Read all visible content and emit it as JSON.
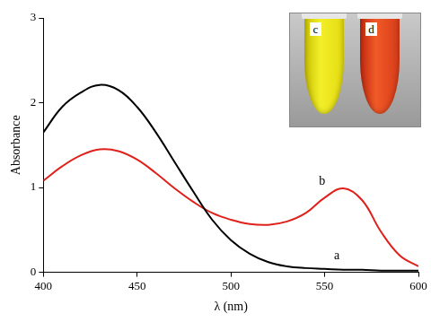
{
  "chart_data": {
    "type": "line",
    "x_label": "λ (nm)",
    "y_label": "Absorbance",
    "xlim": [
      400,
      600
    ],
    "xticks": [
      400,
      450,
      500,
      550,
      600
    ],
    "ylim": [
      0,
      3
    ],
    "yticks": [
      0,
      1,
      2,
      3
    ],
    "grid": false,
    "x": [
      400,
      410,
      420,
      430,
      440,
      450,
      460,
      470,
      480,
      490,
      500,
      510,
      520,
      530,
      540,
      550,
      560,
      570,
      580,
      590,
      600
    ],
    "series": [
      {
        "name": "a",
        "color": "#000000",
        "values": [
          1.65,
          1.95,
          2.12,
          2.21,
          2.15,
          1.95,
          1.65,
          1.3,
          0.95,
          0.62,
          0.38,
          0.22,
          0.12,
          0.07,
          0.05,
          0.04,
          0.03,
          0.03,
          0.02,
          0.02,
          0.02
        ]
      },
      {
        "name": "b",
        "color": "#e0201b",
        "values": [
          1.08,
          1.25,
          1.38,
          1.45,
          1.43,
          1.33,
          1.17,
          0.99,
          0.83,
          0.7,
          0.62,
          0.57,
          0.56,
          0.6,
          0.7,
          0.88,
          0.99,
          0.85,
          0.48,
          0.2,
          0.07
        ]
      }
    ],
    "annotations": [
      {
        "text": "a",
        "x": 555,
        "y": 0.12
      },
      {
        "text": "b",
        "x": 547,
        "y": 1.0
      }
    ],
    "inset": {
      "labels": [
        "c",
        "d"
      ]
    }
  }
}
